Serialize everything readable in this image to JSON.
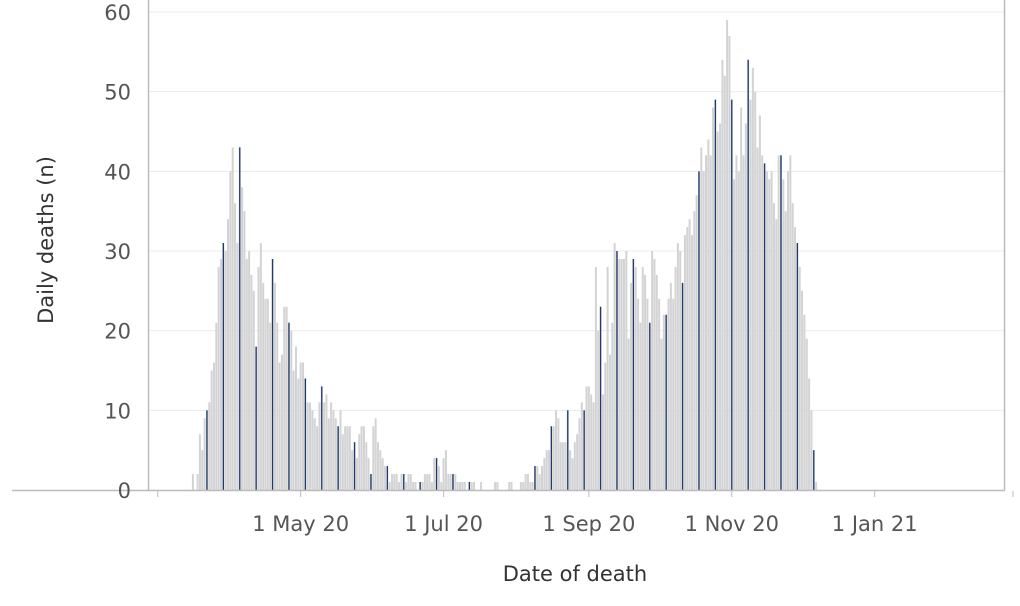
{
  "chart_data": {
    "type": "bar",
    "xlabel": "Date of death",
    "ylabel": "Daily deaths (n)",
    "ylim": [
      0,
      60
    ],
    "yticks": [
      0,
      10,
      20,
      30,
      40,
      50,
      60
    ],
    "xlim": [
      "2020-02-29",
      "2021-03-20"
    ],
    "xticks": [
      {
        "date": "2020-05-01",
        "label": "1 May 20"
      },
      {
        "date": "2020-07-01",
        "label": "1 Jul 20"
      },
      {
        "date": "2020-09-01",
        "label": "1 Sep 20"
      },
      {
        "date": "2020-11-01",
        "label": "1 Nov 20"
      },
      {
        "date": "2021-01-01",
        "label": "1 Jan 21"
      }
    ],
    "grid": true,
    "colors": {
      "daily": "#d3d3d3",
      "highlight": "#1f3a6e",
      "grid": "#ebebeb",
      "axis": "#bbbbbb"
    },
    "start_date": "2020-03-16",
    "values": [
      2,
      0,
      2,
      7,
      5,
      9,
      10,
      11,
      15,
      16,
      21,
      28,
      29,
      31,
      30,
      34,
      40,
      43,
      36,
      31,
      43,
      38,
      35,
      29,
      30,
      27,
      25,
      18,
      28,
      31,
      26,
      24,
      24,
      21,
      29,
      26,
      21,
      16,
      17,
      23,
      23,
      21,
      20,
      15,
      18,
      14,
      16,
      16,
      14,
      11,
      11,
      10,
      9,
      8,
      11,
      13,
      11,
      12,
      9,
      11,
      10,
      9,
      8,
      10,
      7,
      8,
      8,
      8,
      5,
      6,
      4,
      7,
      8,
      8,
      6,
      4,
      2,
      8,
      9,
      6,
      5,
      4,
      3,
      3,
      1,
      2,
      2,
      2,
      1,
      2,
      2,
      1,
      2,
      2,
      1,
      1,
      0,
      1,
      1,
      2,
      2,
      2,
      1,
      4,
      4,
      3,
      1,
      4,
      5,
      2,
      2,
      2,
      2,
      1,
      1,
      1,
      1,
      0,
      1,
      1,
      1,
      0,
      0,
      1,
      0,
      0,
      0,
      0,
      0,
      1,
      1,
      0,
      0,
      0,
      0,
      1,
      1,
      0,
      0,
      0,
      1,
      1,
      2,
      2,
      1,
      1,
      3,
      3,
      2,
      3,
      4,
      5,
      5,
      8,
      8,
      10,
      9,
      6,
      6,
      6,
      10,
      5,
      4,
      6,
      7,
      9,
      11,
      10,
      13,
      13,
      12,
      11,
      28,
      20,
      23,
      12,
      16,
      28,
      17,
      21,
      31,
      30,
      29,
      29,
      29,
      30,
      19,
      26,
      29,
      28,
      24,
      21,
      28,
      27,
      24,
      21,
      30,
      29,
      27,
      24,
      19,
      22,
      22,
      24,
      26,
      24,
      28,
      31,
      30,
      26,
      32,
      33,
      34,
      32,
      35,
      37,
      40,
      43,
      40,
      42,
      44,
      42,
      48,
      49,
      45,
      46,
      54,
      52,
      59,
      57,
      49,
      39,
      42,
      40,
      48,
      42,
      46,
      54,
      49,
      53,
      50,
      43,
      47,
      42,
      41,
      40,
      39,
      40,
      36,
      34,
      42,
      42,
      39,
      35,
      40,
      42,
      36,
      33,
      31,
      28,
      25,
      22,
      19,
      14,
      10,
      5,
      1
    ]
  }
}
